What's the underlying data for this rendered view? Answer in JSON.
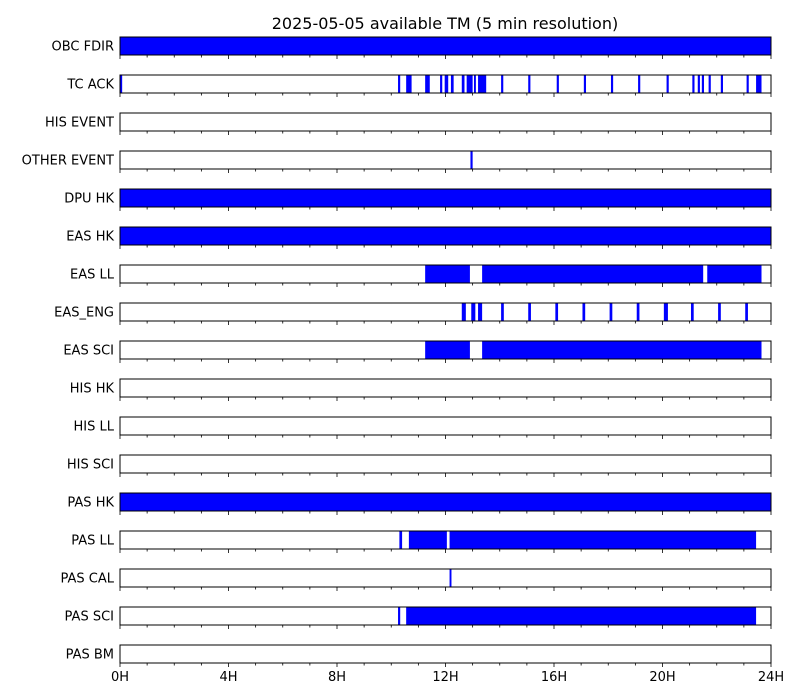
{
  "chart_data": {
    "type": "broken-barh",
    "title": "2025-05-05 available TM (5 min resolution)",
    "x_unit": "hours",
    "xlim": [
      0,
      24
    ],
    "x_ticks": [
      0,
      4,
      8,
      12,
      16,
      20,
      24
    ],
    "x_tick_labels": [
      "0H",
      "4H",
      "8H",
      "12H",
      "16H",
      "20H",
      "24H"
    ],
    "bar_color": "#0000ff",
    "rows": [
      {
        "label": "OBC FDIR",
        "intervals": [
          [
            0,
            24
          ]
        ]
      },
      {
        "label": "TC ACK",
        "intervals": [
          [
            0.0,
            0.08
          ],
          [
            10.25,
            10.33
          ],
          [
            10.55,
            10.75
          ],
          [
            11.25,
            11.42
          ],
          [
            11.8,
            11.88
          ],
          [
            11.97,
            12.1
          ],
          [
            12.2,
            12.3
          ],
          [
            12.6,
            12.7
          ],
          [
            12.78,
            13.0
          ],
          [
            13.05,
            13.12
          ],
          [
            13.2,
            13.5
          ],
          [
            14.05,
            14.13
          ],
          [
            15.05,
            15.13
          ],
          [
            16.1,
            16.18
          ],
          [
            17.1,
            17.18
          ],
          [
            18.1,
            18.18
          ],
          [
            19.1,
            19.18
          ],
          [
            20.15,
            20.23
          ],
          [
            21.1,
            21.18
          ],
          [
            21.3,
            21.38
          ],
          [
            21.45,
            21.53
          ],
          [
            21.7,
            21.78
          ],
          [
            22.15,
            22.23
          ],
          [
            23.1,
            23.18
          ],
          [
            23.45,
            23.65
          ]
        ]
      },
      {
        "label": "HIS EVENT",
        "intervals": []
      },
      {
        "label": "OTHER EVENT",
        "intervals": [
          [
            12.92,
            13.0
          ]
        ]
      },
      {
        "label": "DPU HK",
        "intervals": [
          [
            0,
            24
          ]
        ]
      },
      {
        "label": "EAS HK",
        "intervals": [
          [
            0,
            24
          ]
        ]
      },
      {
        "label": "EAS LL",
        "intervals": [
          [
            11.25,
            12.9
          ],
          [
            13.35,
            21.5
          ],
          [
            21.65,
            23.65
          ]
        ]
      },
      {
        "label": "EAS_ENG",
        "intervals": [
          [
            12.6,
            12.75
          ],
          [
            12.95,
            13.1
          ],
          [
            13.2,
            13.35
          ],
          [
            14.05,
            14.15
          ],
          [
            15.05,
            15.15
          ],
          [
            16.05,
            16.15
          ],
          [
            17.05,
            17.15
          ],
          [
            18.05,
            18.15
          ],
          [
            19.05,
            19.15
          ],
          [
            20.05,
            20.2
          ],
          [
            21.05,
            21.15
          ],
          [
            22.05,
            22.15
          ],
          [
            23.05,
            23.15
          ]
        ]
      },
      {
        "label": "EAS SCI",
        "intervals": [
          [
            11.25,
            12.9
          ],
          [
            13.35,
            23.65
          ]
        ]
      },
      {
        "label": "HIS HK",
        "intervals": []
      },
      {
        "label": "HIS LL",
        "intervals": []
      },
      {
        "label": "HIS SCI",
        "intervals": []
      },
      {
        "label": "PAS HK",
        "intervals": [
          [
            0,
            24
          ]
        ]
      },
      {
        "label": "PAS LL",
        "intervals": [
          [
            10.3,
            10.4
          ],
          [
            10.65,
            12.05
          ],
          [
            12.15,
            23.45
          ]
        ]
      },
      {
        "label": "PAS CAL",
        "intervals": [
          [
            12.15,
            12.22
          ]
        ]
      },
      {
        "label": "PAS SCI",
        "intervals": [
          [
            10.25,
            10.33
          ],
          [
            10.55,
            23.45
          ]
        ]
      },
      {
        "label": "PAS BM",
        "intervals": []
      }
    ]
  }
}
